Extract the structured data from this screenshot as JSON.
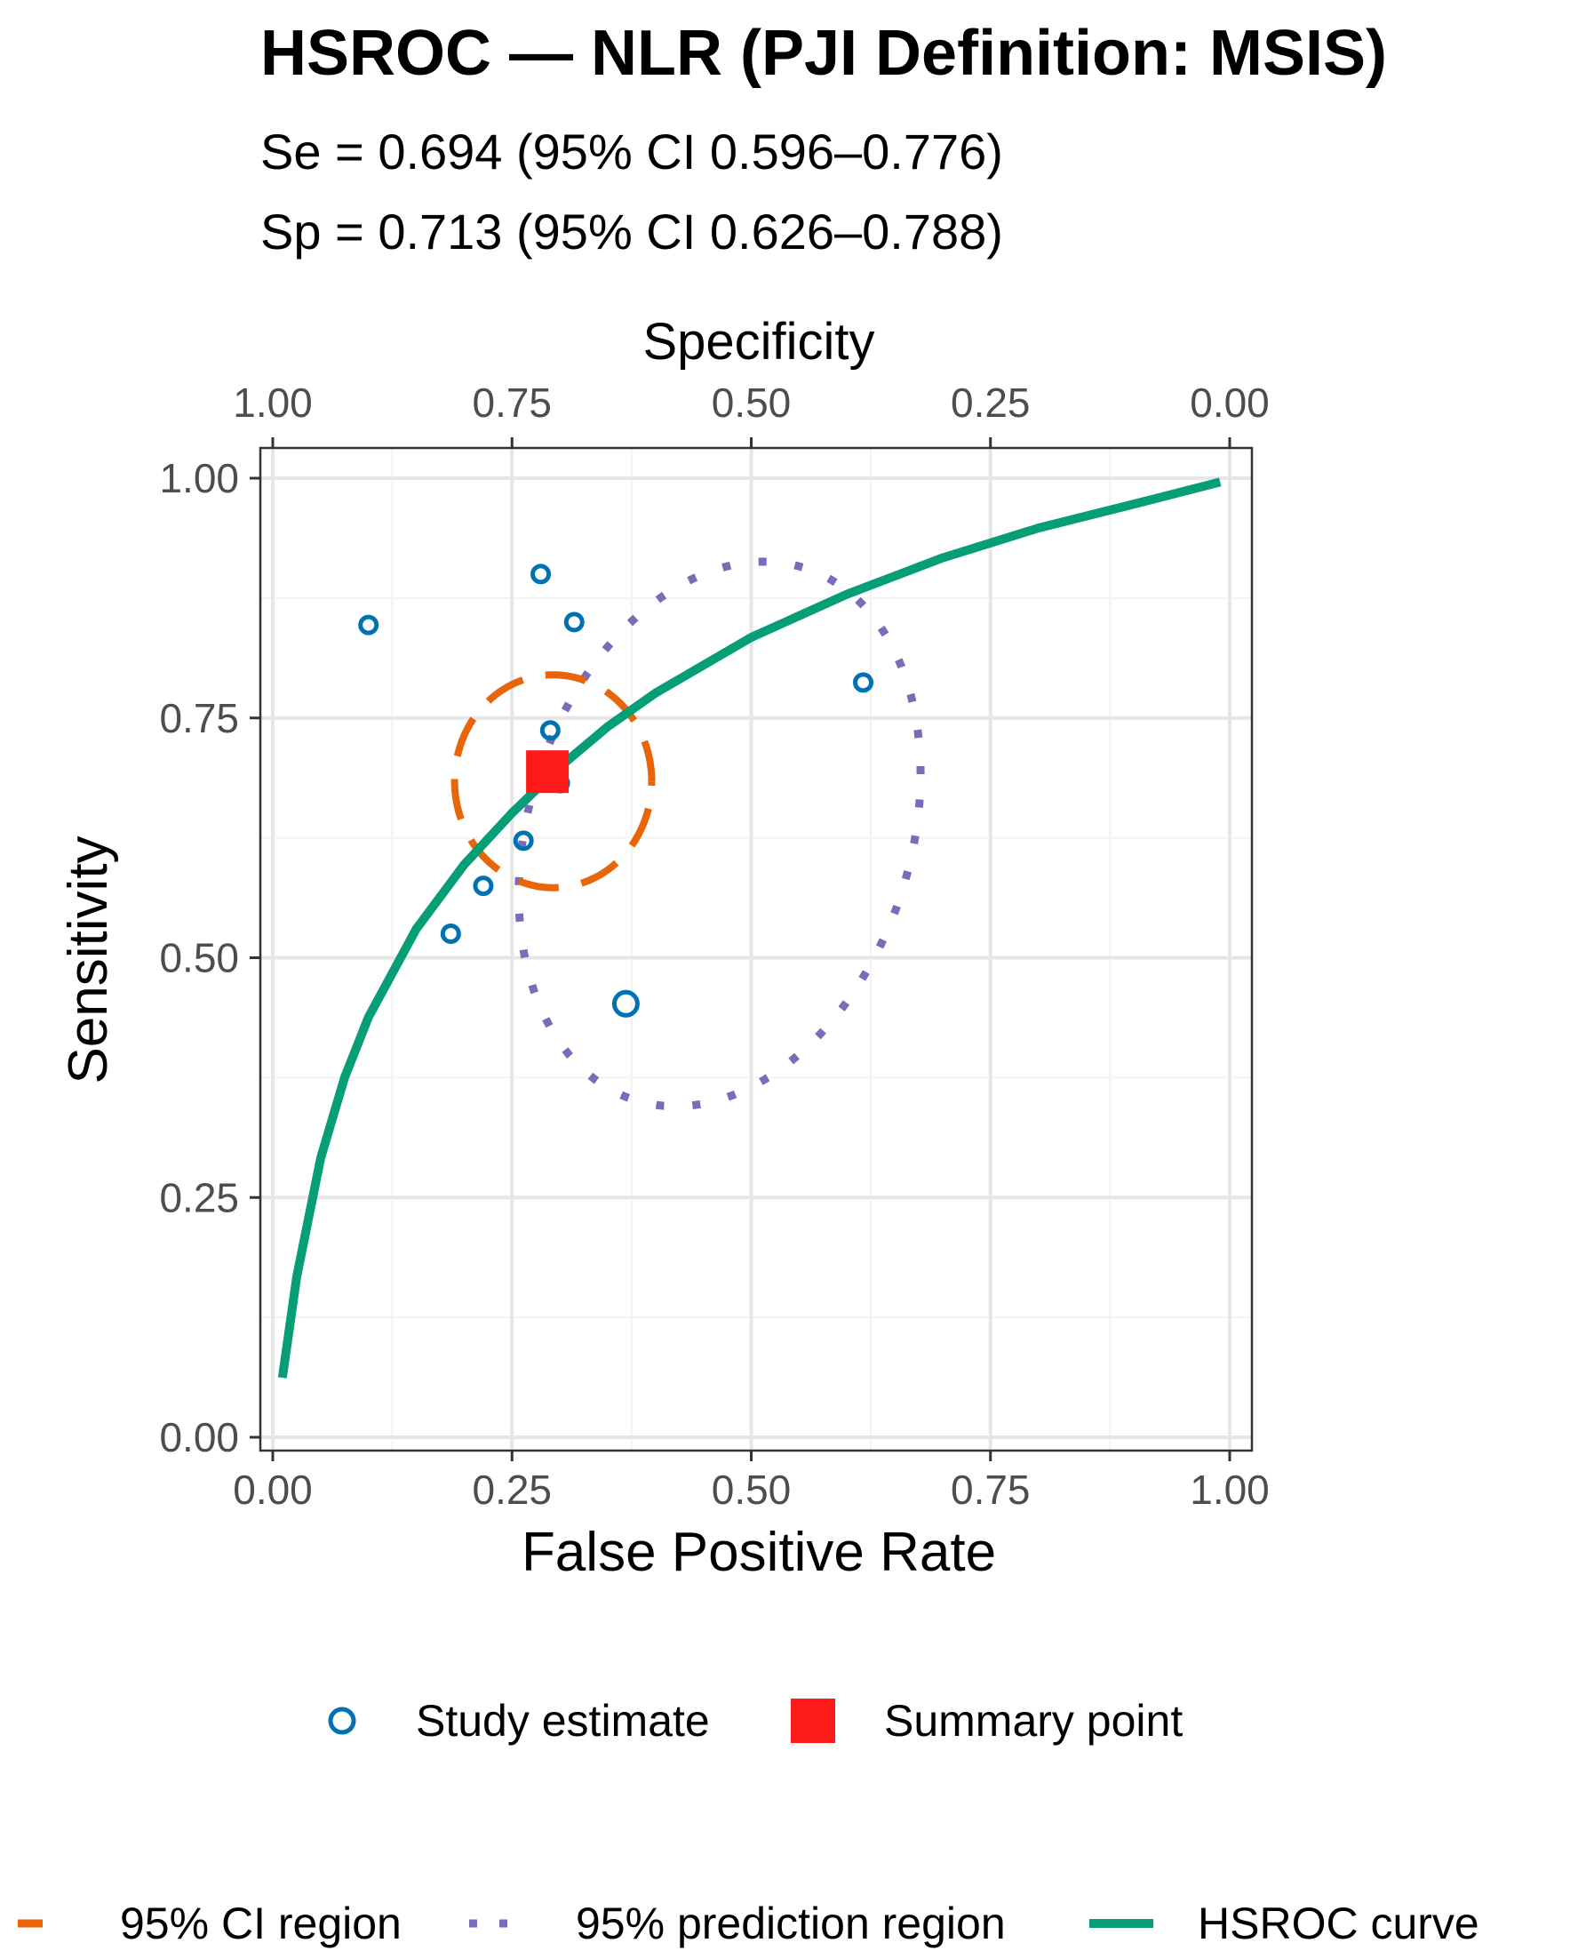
{
  "chart_data": {
    "type": "scatter",
    "title": "HSROC — NLR (PJI Definition: MSIS)",
    "subtitle_lines": [
      "Se = 0.694 (95% CI 0.596–0.776)",
      "Sp = 0.713 (95% CI 0.626–0.788)"
    ],
    "xlabel": "False Positive Rate",
    "ylabel": "Sensitivity",
    "x2label": "Specificity",
    "xlim": [
      0,
      1
    ],
    "ylim": [
      0,
      1
    ],
    "x_ticks": [
      "0.00",
      "0.25",
      "0.50",
      "0.75",
      "1.00"
    ],
    "y_ticks": [
      "0.00",
      "0.25",
      "0.50",
      "0.75",
      "1.00"
    ],
    "x2_ticks": [
      "1.00",
      "0.75",
      "0.50",
      "0.25",
      "0.00"
    ],
    "grid": true,
    "colors": {
      "study": "#0072B2",
      "summary": "#FF1A1A",
      "ci": "#E8650A",
      "prediction": "#7B6BB8",
      "curve": "#059E76"
    },
    "studies": [
      {
        "fpr": 0.1,
        "sens": 0.847
      },
      {
        "fpr": 0.28,
        "sens": 0.9
      },
      {
        "fpr": 0.315,
        "sens": 0.85
      },
      {
        "fpr": 0.617,
        "sens": 0.787
      },
      {
        "fpr": 0.29,
        "sens": 0.737
      },
      {
        "fpr": 0.3,
        "sens": 0.682
      },
      {
        "fpr": 0.262,
        "sens": 0.622
      },
      {
        "fpr": 0.22,
        "sens": 0.575
      },
      {
        "fpr": 0.186,
        "sens": 0.525
      },
      {
        "fpr": 0.369,
        "sens": 0.452
      }
    ],
    "summary_point": {
      "fpr": 0.287,
      "sens": 0.694
    },
    "ci_region": {
      "cx": 0.293,
      "cy": 0.684,
      "rx": 0.103,
      "ry": 0.111
    },
    "prediction_region": {
      "cx": 0.467,
      "cy": 0.629,
      "rx": 0.21,
      "ry": 0.277,
      "tilt": 0.52
    },
    "hsroc_curve": {
      "x": [
        0.01,
        0.025,
        0.05,
        0.075,
        0.1,
        0.15,
        0.2,
        0.25,
        0.3,
        0.35,
        0.4,
        0.5,
        0.6,
        0.7,
        0.8,
        0.9,
        0.99
      ],
      "y": [
        0.062,
        0.167,
        0.291,
        0.375,
        0.438,
        0.53,
        0.597,
        0.651,
        0.699,
        0.741,
        0.776,
        0.834,
        0.879,
        0.917,
        0.948,
        0.973,
        0.996
      ]
    },
    "legend_top": [
      {
        "key": "study",
        "label": "Study estimate"
      },
      {
        "key": "summary",
        "label": "Summary point"
      }
    ],
    "legend_bottom": [
      {
        "key": "ci",
        "label": "95% CI region"
      },
      {
        "key": "prediction",
        "label": "95% prediction region"
      },
      {
        "key": "curve",
        "label": "HSROC curve"
      }
    ]
  }
}
